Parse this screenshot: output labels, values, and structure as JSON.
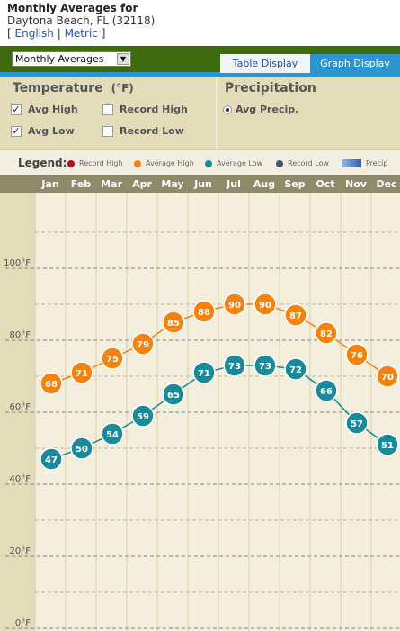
{
  "header": {
    "title": "Monthly Averages for",
    "location": "Daytona Beach, FL (32118)",
    "units": {
      "open": "[",
      "english": "English",
      "sep": "|",
      "metric": "Metric",
      "close": "]"
    }
  },
  "toolbar": {
    "view_select": "Monthly Averages",
    "tabs": {
      "table": "Table Display",
      "graph": "Graph Display"
    }
  },
  "controls": {
    "temperature_title": "Temperature",
    "temperature_unit": "(°F)",
    "avg_high": "Avg High",
    "record_high": "Record High",
    "avg_low": "Avg Low",
    "record_low": "Record Low",
    "precip_title": "Precipitation",
    "avg_precip": "Avg Precip."
  },
  "legend": {
    "label": "Legend:",
    "items": [
      "Record High",
      "Average High",
      "Average Low",
      "Record Low",
      "Precip"
    ]
  },
  "colors": {
    "record_high": "#b3121b",
    "avg_high": "#f5820f",
    "avg_low": "#1a8a9a",
    "record_low": "#3a5870",
    "header_band": "#8f8a6a"
  },
  "chart_data": {
    "type": "line",
    "categories": [
      "Jan",
      "Feb",
      "Mar",
      "Apr",
      "May",
      "Jun",
      "Jul",
      "Aug",
      "Sep",
      "Oct",
      "Nov",
      "Dec"
    ],
    "series": [
      {
        "name": "Average High",
        "values": [
          68,
          71,
          75,
          79,
          85,
          88,
          90,
          90,
          87,
          82,
          76,
          70
        ]
      },
      {
        "name": "Average Low",
        "values": [
          47,
          50,
          54,
          59,
          65,
          71,
          73,
          73,
          72,
          66,
          57,
          51
        ]
      }
    ],
    "y_ticks": [
      "0°F",
      "20°F",
      "40°F",
      "60°F",
      "80°F",
      "100°F"
    ],
    "ylim": [
      0,
      100
    ],
    "grid": true
  }
}
